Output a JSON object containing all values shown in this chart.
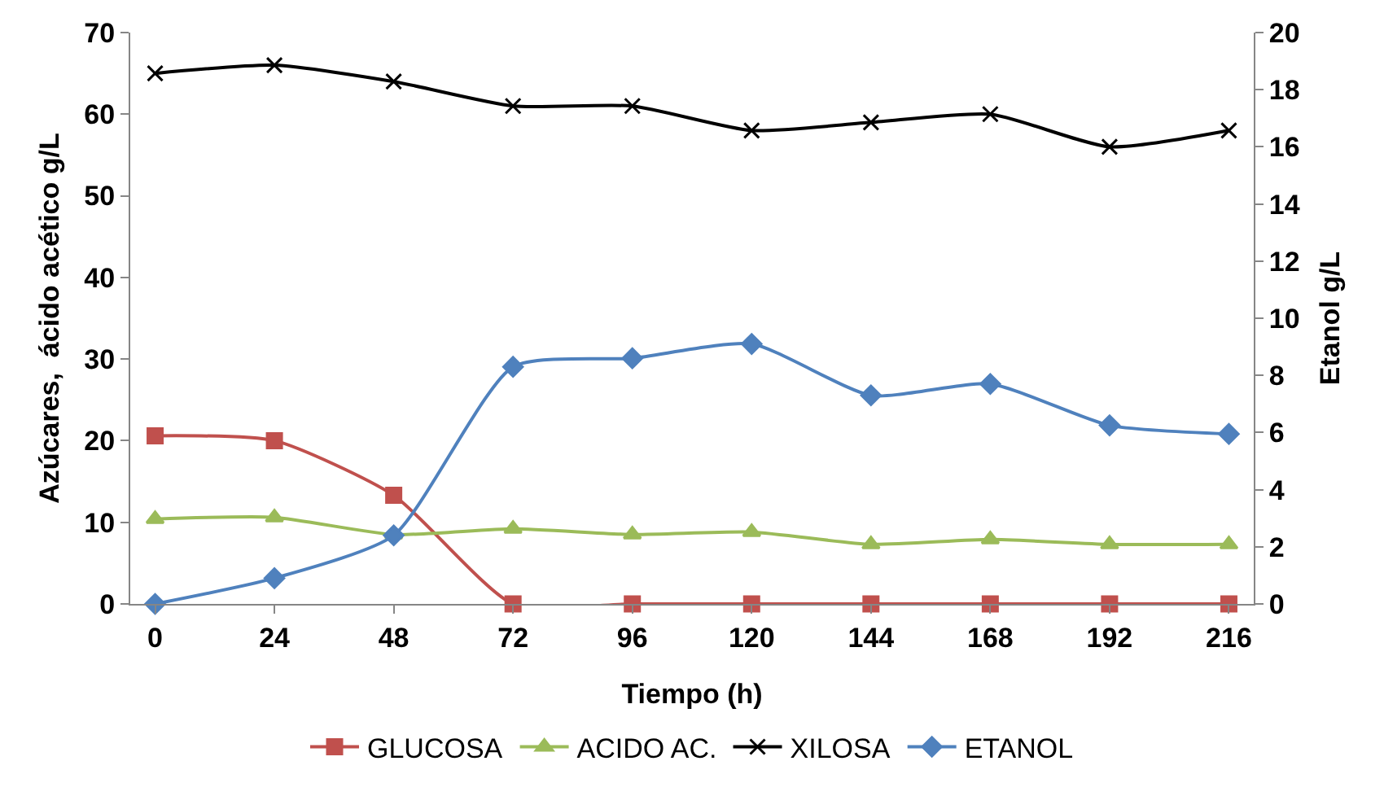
{
  "chart_data": {
    "type": "line",
    "xlabel": "Tiempo (h)",
    "ylabel": "Azúcares,  ácido acético g/L",
    "y2label": "Etanol g/L",
    "x": [
      0,
      24,
      48,
      72,
      96,
      120,
      144,
      168,
      192,
      216
    ],
    "xlim": [
      -5,
      221
    ],
    "xticks": [
      0,
      24,
      48,
      72,
      96,
      120,
      144,
      168,
      192,
      216
    ],
    "ylim": [
      0,
      70
    ],
    "yticks": [
      0,
      10,
      20,
      30,
      40,
      50,
      60,
      70
    ],
    "y2lim": [
      0,
      20
    ],
    "y2ticks": [
      0,
      2,
      4,
      6,
      8,
      10,
      12,
      14,
      16,
      18,
      20
    ],
    "grid": false,
    "legend": "bottom",
    "series": [
      {
        "name": "GLUCOSA",
        "color": "#c0504d",
        "marker": "square",
        "values": [
          20.6,
          20,
          13.3,
          0,
          0,
          0,
          0,
          0,
          0,
          0
        ]
      },
      {
        "name": "ACIDO AC.",
        "color": "#9bbb59",
        "marker": "triangle",
        "values": [
          10.4,
          10.6,
          8.5,
          9.2,
          8.5,
          8.8,
          7.3,
          7.9,
          7.3,
          7.3
        ]
      },
      {
        "name": "XILOSA",
        "color": "#000000",
        "marker": "cross",
        "values": [
          65,
          66,
          64,
          61,
          61,
          58,
          59,
          60,
          56,
          58
        ]
      },
      {
        "name": "ETANOL",
        "color": "#4f81bd",
        "marker": "diamond",
        "axis": "y2",
        "values": [
          0,
          0.9,
          2.4,
          8.3,
          8.6,
          9.1,
          7.3,
          7.7,
          6.25,
          5.95
        ]
      }
    ]
  }
}
